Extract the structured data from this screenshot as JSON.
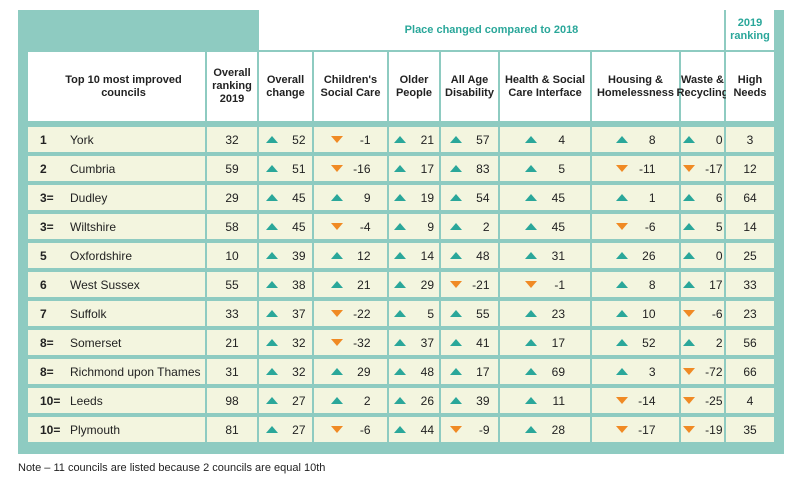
{
  "table": {
    "super_header": "Place changed compared to 2018",
    "super_header_ranking": "2019 ranking",
    "headers": [
      "Top 10 most improved councils",
      "Overall ranking 2019",
      "Overall change",
      "Children's Social Care",
      "Older People",
      "All Age Disability",
      "Health & Social Care Interface",
      "Housing & Homelessness",
      "Waste & Recycling",
      "High Needs"
    ],
    "rows": [
      {
        "rank": "1",
        "council": "York",
        "overall": "32",
        "changes": [
          {
            "dir": "up",
            "v": "52"
          },
          {
            "dir": "down",
            "v": "-1"
          },
          {
            "dir": "up",
            "v": "21"
          },
          {
            "dir": "up",
            "v": "57"
          },
          {
            "dir": "up",
            "v": "4"
          },
          {
            "dir": "up",
            "v": "8"
          },
          {
            "dir": "up",
            "v": "0"
          }
        ],
        "high_needs": "3"
      },
      {
        "rank": "2",
        "council": "Cumbria",
        "overall": "59",
        "changes": [
          {
            "dir": "up",
            "v": "51"
          },
          {
            "dir": "down",
            "v": "-16"
          },
          {
            "dir": "up",
            "v": "17"
          },
          {
            "dir": "up",
            "v": "83"
          },
          {
            "dir": "up",
            "v": "5"
          },
          {
            "dir": "down",
            "v": "-11"
          },
          {
            "dir": "down",
            "v": "-17"
          }
        ],
        "high_needs": "12"
      },
      {
        "rank": "3=",
        "council": "Dudley",
        "overall": "29",
        "changes": [
          {
            "dir": "up",
            "v": "45"
          },
          {
            "dir": "up",
            "v": "9"
          },
          {
            "dir": "up",
            "v": "19"
          },
          {
            "dir": "up",
            "v": "54"
          },
          {
            "dir": "up",
            "v": "45"
          },
          {
            "dir": "up",
            "v": "1"
          },
          {
            "dir": "up",
            "v": "6"
          }
        ],
        "high_needs": "64"
      },
      {
        "rank": "3=",
        "council": "Wiltshire",
        "overall": "58",
        "changes": [
          {
            "dir": "up",
            "v": "45"
          },
          {
            "dir": "down",
            "v": "-4"
          },
          {
            "dir": "up",
            "v": "9"
          },
          {
            "dir": "up",
            "v": "2"
          },
          {
            "dir": "up",
            "v": "45"
          },
          {
            "dir": "down",
            "v": "-6"
          },
          {
            "dir": "up",
            "v": "5"
          }
        ],
        "high_needs": "14"
      },
      {
        "rank": "5",
        "council": "Oxfordshire",
        "overall": "10",
        "changes": [
          {
            "dir": "up",
            "v": "39"
          },
          {
            "dir": "up",
            "v": "12"
          },
          {
            "dir": "up",
            "v": "14"
          },
          {
            "dir": "up",
            "v": "48"
          },
          {
            "dir": "up",
            "v": "31"
          },
          {
            "dir": "up",
            "v": "26"
          },
          {
            "dir": "up",
            "v": "0"
          }
        ],
        "high_needs": "25"
      },
      {
        "rank": "6",
        "council": "West Sussex",
        "overall": "55",
        "changes": [
          {
            "dir": "up",
            "v": "38"
          },
          {
            "dir": "up",
            "v": "21"
          },
          {
            "dir": "up",
            "v": "29"
          },
          {
            "dir": "down",
            "v": "-21"
          },
          {
            "dir": "down",
            "v": "-1"
          },
          {
            "dir": "up",
            "v": "8"
          },
          {
            "dir": "up",
            "v": "17"
          }
        ],
        "high_needs": "33"
      },
      {
        "rank": "7",
        "council": "Suffolk",
        "overall": "33",
        "changes": [
          {
            "dir": "up",
            "v": "37"
          },
          {
            "dir": "down",
            "v": "-22"
          },
          {
            "dir": "up",
            "v": "5"
          },
          {
            "dir": "up",
            "v": "55"
          },
          {
            "dir": "up",
            "v": "23"
          },
          {
            "dir": "up",
            "v": "10"
          },
          {
            "dir": "down",
            "v": "-6"
          }
        ],
        "high_needs": "23"
      },
      {
        "rank": "8=",
        "council": "Somerset",
        "overall": "21",
        "changes": [
          {
            "dir": "up",
            "v": "32"
          },
          {
            "dir": "down",
            "v": "-32"
          },
          {
            "dir": "up",
            "v": "37"
          },
          {
            "dir": "up",
            "v": "41"
          },
          {
            "dir": "up",
            "v": "17"
          },
          {
            "dir": "up",
            "v": "52"
          },
          {
            "dir": "up",
            "v": "2"
          }
        ],
        "high_needs": "56"
      },
      {
        "rank": "8=",
        "council": "Richmond upon Thames",
        "overall": "31",
        "changes": [
          {
            "dir": "up",
            "v": "32"
          },
          {
            "dir": "up",
            "v": "29"
          },
          {
            "dir": "up",
            "v": "48"
          },
          {
            "dir": "up",
            "v": "17"
          },
          {
            "dir": "up",
            "v": "69"
          },
          {
            "dir": "up",
            "v": "3"
          },
          {
            "dir": "down",
            "v": "-72"
          }
        ],
        "high_needs": "66"
      },
      {
        "rank": "10=",
        "council": "Leeds",
        "overall": "98",
        "changes": [
          {
            "dir": "up",
            "v": "27"
          },
          {
            "dir": "up",
            "v": "2"
          },
          {
            "dir": "up",
            "v": "26"
          },
          {
            "dir": "up",
            "v": "39"
          },
          {
            "dir": "up",
            "v": "11"
          },
          {
            "dir": "down",
            "v": "-14"
          },
          {
            "dir": "down",
            "v": "-25"
          }
        ],
        "high_needs": "4"
      },
      {
        "rank": "10=",
        "council": "Plymouth",
        "overall": "81",
        "changes": [
          {
            "dir": "up",
            "v": "27"
          },
          {
            "dir": "down",
            "v": "-6"
          },
          {
            "dir": "up",
            "v": "44"
          },
          {
            "dir": "down",
            "v": "-9"
          },
          {
            "dir": "up",
            "v": "28"
          },
          {
            "dir": "down",
            "v": "-17"
          },
          {
            "dir": "down",
            "v": "-19"
          }
        ],
        "high_needs": "35"
      }
    ]
  },
  "note": "Note – 11 councils are listed because 2 councils are equal 10th",
  "colors": {
    "teal": "#2aa79a",
    "orange": "#f08a24",
    "panel": "#8ecbc1",
    "row": "#f3f5df"
  }
}
